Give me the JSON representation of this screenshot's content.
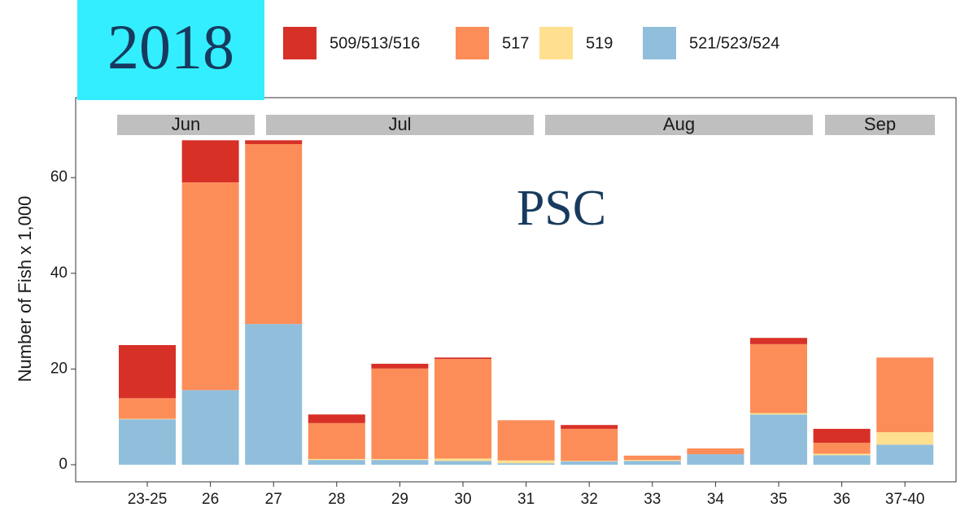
{
  "chart_data": {
    "type": "bar",
    "stacked": true,
    "label": "2018",
    "annotation": "PSC",
    "y_label": "Number of Fish x 1,000",
    "month_strips": [
      "Jun",
      "Jul",
      "Aug",
      "Sep"
    ],
    "categories": [
      "23-25",
      "26",
      "27",
      "28",
      "29",
      "30",
      "31",
      "32",
      "33",
      "34",
      "35",
      "36",
      "37-40"
    ],
    "series": [
      {
        "name": "521/523/524",
        "color": "#91bfdb",
        "values": [
          9.5,
          15.6,
          29.4,
          1.0,
          1.0,
          0.8,
          0.3,
          0.7,
          0.8,
          2.2,
          10.5,
          2.0,
          4.2
        ]
      },
      {
        "name": "519",
        "color": "#fee090",
        "values": [
          0.1,
          0,
          0,
          0.2,
          0.2,
          0.5,
          0.6,
          0.1,
          0.2,
          0,
          0.3,
          0.3,
          2.6
        ]
      },
      {
        "name": "517",
        "color": "#fc8d59",
        "values": [
          4.3,
          43.4,
          37.6,
          7.5,
          18.9,
          20.8,
          8.4,
          6.7,
          0.9,
          1.2,
          14.4,
          2.3,
          15.6
        ]
      },
      {
        "name": "509/513/516",
        "color": "#d73027",
        "values": [
          11.1,
          8.8,
          0.8,
          1.8,
          1.0,
          0.3,
          0,
          0.8,
          0,
          0,
          1.3,
          2.9,
          0
        ]
      }
    ],
    "legend_order": [
      3,
      2,
      1,
      0
    ],
    "ylim": [
      -3.57,
      76.7
    ],
    "yticks": [
      0,
      20,
      40,
      60
    ],
    "grid": false
  }
}
